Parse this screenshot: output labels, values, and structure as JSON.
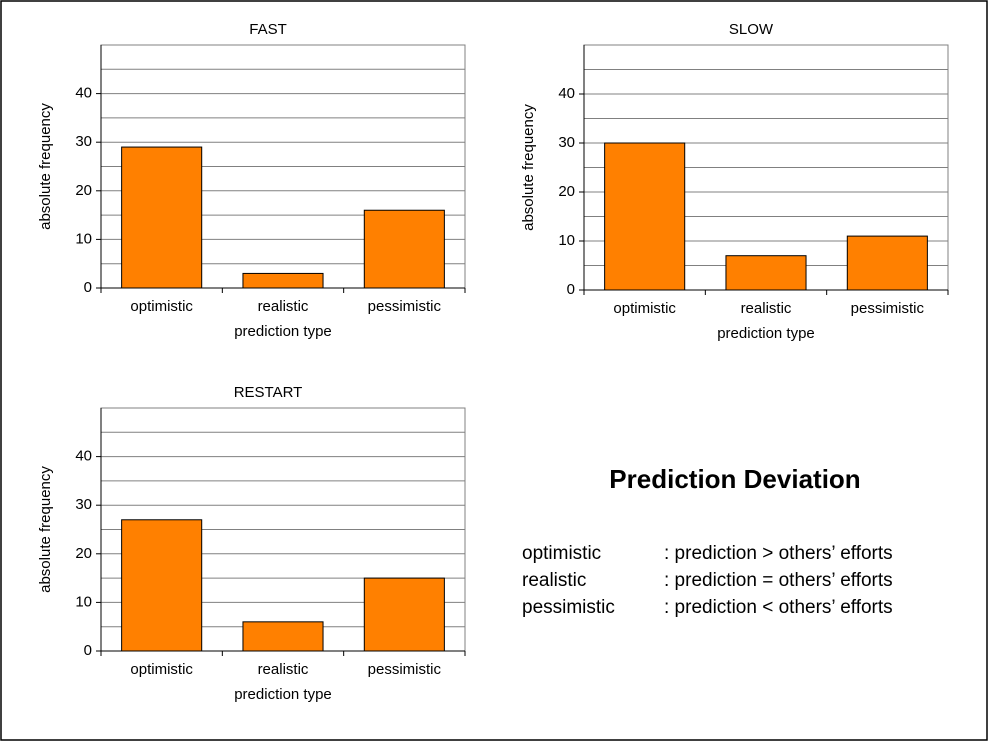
{
  "chart_data": [
    {
      "type": "bar",
      "title": "FAST",
      "xlabel": "prediction type",
      "ylabel": "absolute frequency",
      "categories": [
        "optimistic",
        "realistic",
        "pessimistic"
      ],
      "values": [
        29,
        3,
        16
      ],
      "color": "#ff8000",
      "ylim": [
        0,
        50
      ],
      "yticks": [
        0,
        10,
        20,
        30,
        40
      ],
      "minor_yticks": [
        5,
        15,
        25,
        35,
        45
      ],
      "grid": true
    },
    {
      "type": "bar",
      "title": "SLOW",
      "xlabel": "prediction type",
      "ylabel": "absolute frequency",
      "categories": [
        "optimistic",
        "realistic",
        "pessimistic"
      ],
      "values": [
        30,
        7,
        11
      ],
      "color": "#ff8000",
      "ylim": [
        0,
        50
      ],
      "yticks": [
        0,
        10,
        20,
        30,
        40
      ],
      "minor_yticks": [
        5,
        15,
        25,
        35,
        45
      ],
      "grid": true
    },
    {
      "type": "bar",
      "title": "RESTART",
      "xlabel": "prediction type",
      "ylabel": "absolute frequency",
      "categories": [
        "optimistic",
        "realistic",
        "pessimistic"
      ],
      "values": [
        27,
        6,
        15
      ],
      "color": "#ff8000",
      "ylim": [
        0,
        50
      ],
      "yticks": [
        0,
        10,
        20,
        30,
        40
      ],
      "minor_yticks": [
        5,
        15,
        25,
        35,
        45
      ],
      "grid": true
    }
  ],
  "legend_box": {
    "title": "Prediction Deviation",
    "rows": [
      [
        "optimistic",
        ": prediction > others’ efforts"
      ],
      [
        "realistic",
        ": prediction = others’ efforts"
      ],
      [
        "pessimistic",
        ": prediction < others’ efforts"
      ]
    ]
  }
}
